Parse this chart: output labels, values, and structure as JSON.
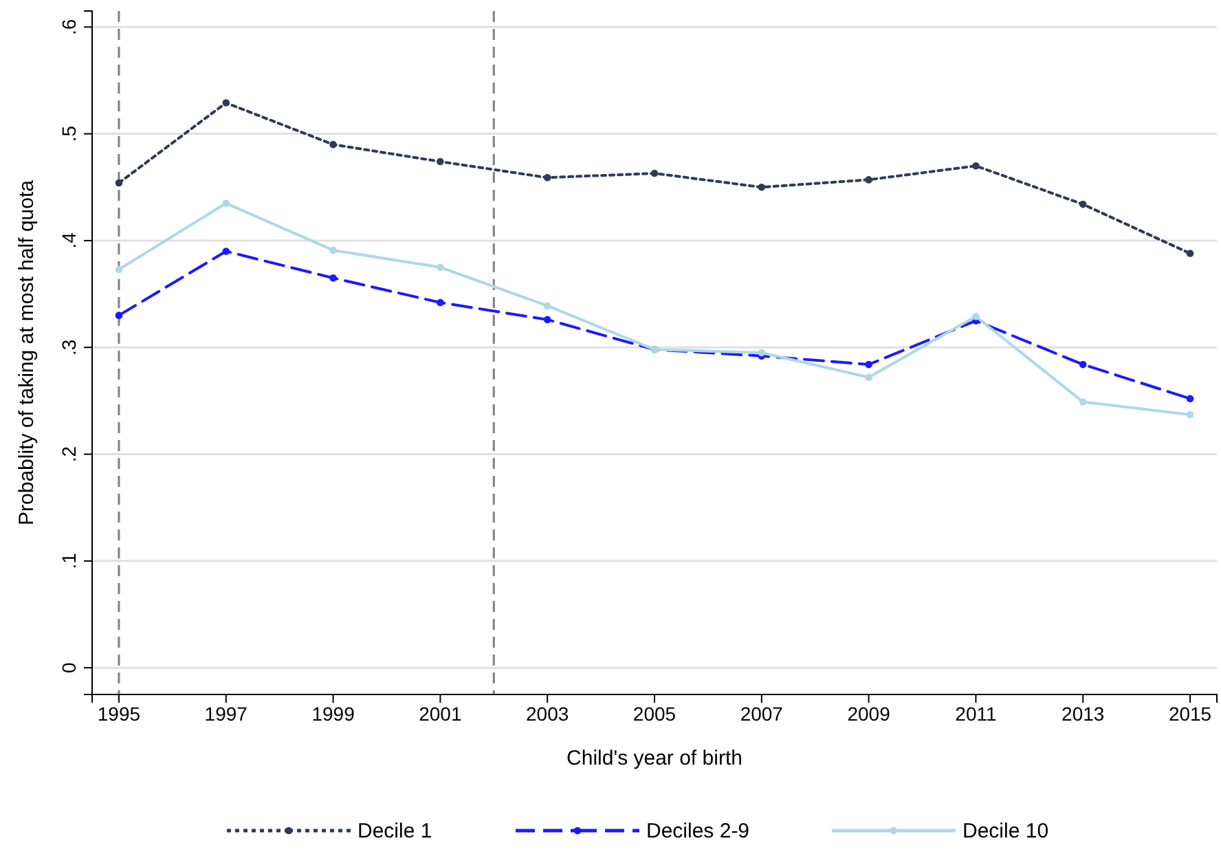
{
  "chart_data": {
    "type": "line",
    "xlabel": "Child's year of birth",
    "ylabel": "Probablity of taking at most half quota",
    "x": [
      1995,
      1997,
      1999,
      2001,
      2003,
      2005,
      2007,
      2009,
      2011,
      2013,
      2015
    ],
    "series": [
      {
        "name": "Decile 1",
        "color": "#2e3b55",
        "line_style": "dotted",
        "values": [
          0.454,
          0.529,
          0.49,
          0.474,
          0.459,
          0.463,
          0.45,
          0.457,
          0.47,
          0.434,
          0.388
        ]
      },
      {
        "name": "Deciles 2-9",
        "color": "#1a1aff",
        "line_style": "dashed",
        "values": [
          0.33,
          0.39,
          0.365,
          0.342,
          0.326,
          0.298,
          0.292,
          0.284,
          0.325,
          0.284,
          0.252
        ]
      },
      {
        "name": "Decile 10",
        "color": "#add8e6",
        "line_style": "solid",
        "values": [
          0.373,
          0.435,
          0.391,
          0.375,
          0.339,
          0.298,
          0.295,
          0.272,
          0.329,
          0.249,
          0.237
        ]
      }
    ],
    "xlim": [
      1994.5,
      2015.5
    ],
    "xticks": [
      1995,
      1997,
      1999,
      2001,
      2003,
      2005,
      2007,
      2009,
      2011,
      2013,
      2015
    ],
    "ylim": [
      -0.025,
      0.615
    ],
    "yticks": [
      0,
      {
        "value": 0.1,
        "label": ".1"
      },
      {
        "value": 0.2,
        "label": ".2"
      },
      {
        "value": 0.3,
        "label": ".3"
      },
      {
        "value": 0.4,
        "label": ".4"
      },
      {
        "value": 0.5,
        "label": ".5"
      },
      {
        "value": 0.6,
        "label": ".6"
      }
    ],
    "ref_lines": [
      {
        "axis": "x",
        "value": 1995,
        "label": null,
        "color": "#808080",
        "line_style": "dashed"
      },
      {
        "axis": "x",
        "value": 2002,
        "label": null,
        "color": "#808080",
        "line_style": "dashed"
      }
    ],
    "grid": "y",
    "legend": "bottom",
    "marker": "circle"
  }
}
